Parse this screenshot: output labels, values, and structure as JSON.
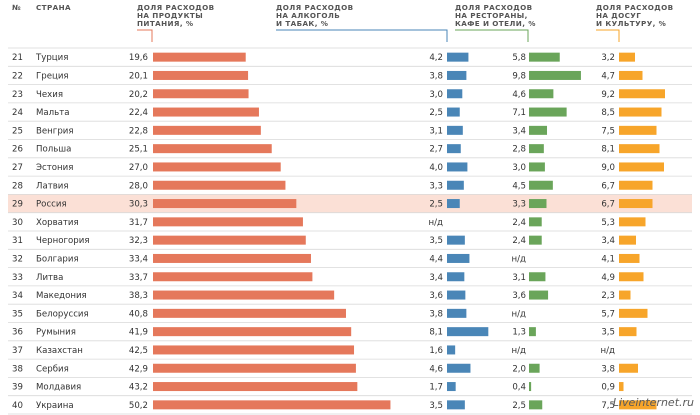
{
  "headers": {
    "num": "№",
    "country": "СТРАНА",
    "food": [
      "ДОЛЯ РАСХОДОВ",
      "НА ПРОДУКТЫ",
      "ПИТАНИЯ, %"
    ],
    "alcohol": [
      "ДОЛЯ РАСХОДОВ",
      "НА АЛКОГОЛЬ",
      "И ТАБАК, %"
    ],
    "restaurants": [
      "ДОЛЯ РАСХОДОВ",
      "НА РЕСТОРАНЫ,",
      "КАФЕ И ОТЕЛИ, %"
    ],
    "leisure": [
      "ДОЛЯ РАСХОДОВ",
      "НА ДОСУГ",
      "И КУЛЬТУРУ, %"
    ]
  },
  "watermark": "Liveinternet.ru",
  "colors": {
    "food": "#e5785b",
    "alcohol": "#4a86b7",
    "restaurants": "#6aa55a",
    "leisure": "#f7a52a",
    "highlight": "#fbe0d6",
    "rowline": "#d9d9d9",
    "header_line_food": "#e5785b",
    "header_line_alcohol": "#4a86b7",
    "header_line_restaurants": "#6aa55a",
    "header_line_leisure": "#f7a52a"
  },
  "highlight_country": "Россия",
  "na_label": "н/д",
  "chart_data": {
    "type": "table",
    "columns": [
      "№",
      "Страна",
      "Доля расходов на продукты питания, %",
      "Доля расходов на алкоголь и табак, %",
      "Доля расходов на рестораны, кафе и отели, %",
      "Доля расходов на досуг и культуру, %"
    ],
    "rows": [
      {
        "rank": 21,
        "country": "Турция",
        "food": 19.6,
        "alcohol": 4.2,
        "restaurants": 5.8,
        "leisure": 3.2
      },
      {
        "rank": 22,
        "country": "Греция",
        "food": 20.1,
        "alcohol": 3.8,
        "restaurants": 9.8,
        "leisure": 4.7
      },
      {
        "rank": 23,
        "country": "Чехия",
        "food": 20.2,
        "alcohol": 3.0,
        "restaurants": 4.6,
        "leisure": 9.2
      },
      {
        "rank": 24,
        "country": "Мальта",
        "food": 22.4,
        "alcohol": 2.5,
        "restaurants": 7.1,
        "leisure": 8.5
      },
      {
        "rank": 25,
        "country": "Венгрия",
        "food": 22.8,
        "alcohol": 3.1,
        "restaurants": 3.4,
        "leisure": 7.5
      },
      {
        "rank": 26,
        "country": "Польша",
        "food": 25.1,
        "alcohol": 2.7,
        "restaurants": 2.8,
        "leisure": 8.1
      },
      {
        "rank": 27,
        "country": "Эстония",
        "food": 27.0,
        "alcohol": 4.0,
        "restaurants": 3.0,
        "leisure": 9.0
      },
      {
        "rank": 28,
        "country": "Латвия",
        "food": 28.0,
        "alcohol": 3.3,
        "restaurants": 4.5,
        "leisure": 6.7
      },
      {
        "rank": 29,
        "country": "Россия",
        "food": 30.3,
        "alcohol": 2.5,
        "restaurants": 3.3,
        "leisure": 6.7
      },
      {
        "rank": 30,
        "country": "Хорватия",
        "food": 31.7,
        "alcohol": null,
        "restaurants": 2.4,
        "leisure": 5.3
      },
      {
        "rank": 31,
        "country": "Черногория",
        "food": 32.3,
        "alcohol": 3.5,
        "restaurants": 2.4,
        "leisure": 3.4
      },
      {
        "rank": 32,
        "country": "Болгария",
        "food": 33.4,
        "alcohol": 4.4,
        "restaurants": null,
        "leisure": 4.1
      },
      {
        "rank": 33,
        "country": "Литва",
        "food": 33.7,
        "alcohol": 3.4,
        "restaurants": 3.1,
        "leisure": 4.9
      },
      {
        "rank": 34,
        "country": "Македония",
        "food": 38.3,
        "alcohol": 3.6,
        "restaurants": 3.6,
        "leisure": 2.3
      },
      {
        "rank": 35,
        "country": "Белоруссия",
        "food": 40.8,
        "alcohol": 3.8,
        "restaurants": null,
        "leisure": 5.7
      },
      {
        "rank": 36,
        "country": "Румыния",
        "food": 41.9,
        "alcohol": 8.1,
        "restaurants": 1.3,
        "leisure": 3.5
      },
      {
        "rank": 37,
        "country": "Казахстан",
        "food": 42.5,
        "alcohol": 1.6,
        "restaurants": null,
        "leisure": null
      },
      {
        "rank": 38,
        "country": "Сербия",
        "food": 42.9,
        "alcohol": 4.6,
        "restaurants": 2.0,
        "leisure": 3.8
      },
      {
        "rank": 39,
        "country": "Молдавия",
        "food": 43.2,
        "alcohol": 1.7,
        "restaurants": 0.4,
        "leisure": 0.9
      },
      {
        "rank": 40,
        "country": "Украина",
        "food": 50.2,
        "alcohol": 3.5,
        "restaurants": 2.5,
        "leisure": 7.5
      }
    ]
  }
}
